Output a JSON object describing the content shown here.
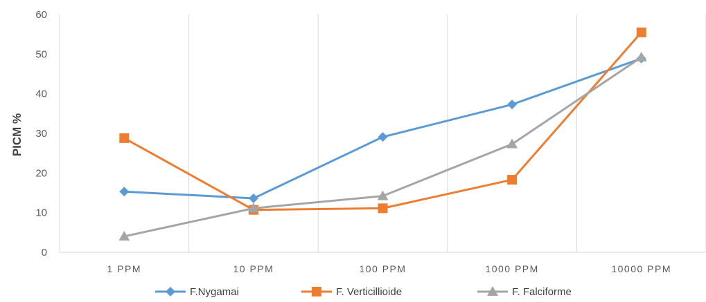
{
  "chart_data": {
    "type": "line",
    "categories": [
      "1 PPM",
      "10 PPM",
      "100 PPM",
      "1000 PPM",
      "10000 PPM"
    ],
    "ylabel": "PICM %",
    "xlabel": "",
    "title": "",
    "ylim": [
      0,
      60
    ],
    "yticks": [
      0,
      10,
      20,
      30,
      40,
      50,
      60
    ],
    "grid": "vertical",
    "legend_position": "bottom",
    "series": [
      {
        "name": "F.Nygamai",
        "values": [
          15.3,
          13.6,
          29.1,
          37.3,
          48.9
        ],
        "color": "#5b9bd5",
        "marker": "diamond"
      },
      {
        "name": "F. Verticillioide",
        "values": [
          28.8,
          10.7,
          11.1,
          18.3,
          55.5
        ],
        "color": "#ed7d31",
        "marker": "square"
      },
      {
        "name": "F. Falciforme",
        "values": [
          4.0,
          11.1,
          14.2,
          27.3,
          49.2
        ],
        "color": "#a5a5a5",
        "marker": "triangle"
      }
    ]
  }
}
